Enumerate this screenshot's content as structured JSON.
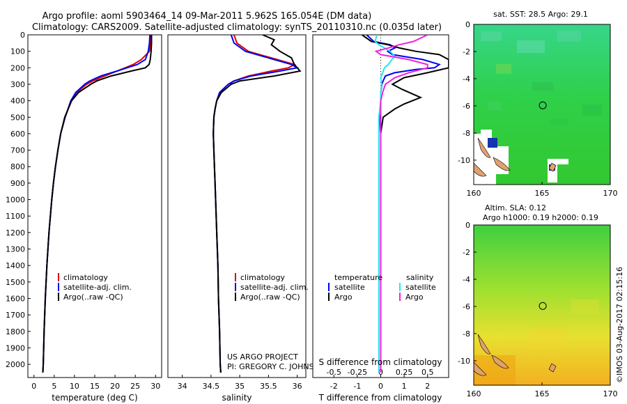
{
  "header": {
    "line1": "Argo profile: aoml 5903464_14 09-Mar-2011 5.962S 165.054E (DM data)",
    "line2": "Climatology: CARS2009. Satellite-adjusted climatology: synTS_20110310.nc (0.035d later)"
  },
  "colors": {
    "clim": "#dd0000",
    "sat": "#0000ee",
    "argo": "#000000",
    "sal_sat": "#22e5ee",
    "sal_argo": "#ee22dd",
    "land": "#e0a070"
  },
  "chart_data": [
    {
      "type": "line",
      "id": "temperature",
      "xlabel": "temperature (deg C)",
      "ylim": [
        2080,
        0
      ],
      "xlim": [
        -1.5,
        31.5
      ],
      "xticks": [
        0,
        5,
        10,
        15,
        20,
        25,
        30
      ],
      "yticks": [
        0,
        100,
        200,
        300,
        400,
        500,
        600,
        700,
        800,
        900,
        1000,
        1100,
        1200,
        1300,
        1400,
        1500,
        1600,
        1700,
        1800,
        1900,
        2000
      ],
      "legend": [
        "climatology",
        "satellite-adj. clim.",
        "Argo(..raw -QC)"
      ],
      "series": [
        {
          "name": "climatology",
          "depth": [
            0,
            50,
            100,
            150,
            180,
            200,
            220,
            250,
            280,
            300,
            350,
            400,
            500,
            600,
            700,
            800,
            900,
            1000,
            1200,
            1400,
            1600,
            1800,
            2000,
            2050
          ],
          "values": [
            28.9,
            28.8,
            28.5,
            26.5,
            24.5,
            22.5,
            20.5,
            17.5,
            14.5,
            13.0,
            10.5,
            9.2,
            7.7,
            6.6,
            5.9,
            5.3,
            4.8,
            4.4,
            3.7,
            3.2,
            2.8,
            2.5,
            2.3,
            2.2
          ]
        },
        {
          "name": "satellite-adj. clim.",
          "depth": [
            0,
            50,
            100,
            150,
            180,
            200,
            220,
            250,
            280,
            300,
            350,
            400,
            500,
            600,
            700,
            800,
            900,
            1000,
            1200,
            1400,
            1600,
            1800,
            2000,
            2050
          ],
          "values": [
            28.6,
            28.5,
            28.2,
            27.5,
            25.5,
            23.0,
            20.5,
            16.5,
            13.8,
            12.5,
            10.3,
            9.1,
            7.7,
            6.6,
            5.9,
            5.3,
            4.8,
            4.4,
            3.7,
            3.2,
            2.8,
            2.5,
            2.3,
            2.2
          ]
        },
        {
          "name": "Argo(..raw -QC)",
          "depth": [
            0,
            50,
            100,
            150,
            180,
            200,
            220,
            250,
            280,
            300,
            350,
            400,
            500,
            600,
            700,
            800,
            900,
            1000,
            1200,
            1400,
            1600,
            1800,
            2000,
            2050
          ],
          "values": [
            29.0,
            29.0,
            28.9,
            28.7,
            28.4,
            27.5,
            24.0,
            19.0,
            15.5,
            14.0,
            11.0,
            9.3,
            7.6,
            6.6,
            5.9,
            5.3,
            4.8,
            4.4,
            3.7,
            3.2,
            2.8,
            2.5,
            2.3,
            2.2
          ]
        }
      ]
    },
    {
      "type": "line",
      "id": "salinity",
      "xlabel": "salinity",
      "ylim": [
        2080,
        0
      ],
      "xlim": [
        33.75,
        36.15
      ],
      "xticks": [
        34,
        34.5,
        35,
        35.5,
        36
      ],
      "legend": [
        "climatology",
        "satellite-adj. clim.",
        "Argo(..raw -QC)"
      ],
      "series": [
        {
          "name": "climatology",
          "depth": [
            0,
            50,
            100,
            150,
            180,
            200,
            220,
            250,
            280,
            300,
            350,
            400,
            450,
            500,
            600,
            700,
            800,
            900,
            1000,
            1200,
            1400,
            1600,
            1800,
            2000,
            2050
          ],
          "values": [
            34.9,
            34.95,
            35.15,
            35.65,
            35.95,
            35.85,
            35.55,
            35.15,
            34.9,
            34.8,
            34.65,
            34.6,
            34.57,
            34.55,
            34.54,
            34.55,
            34.56,
            34.57,
            34.58,
            34.6,
            34.62,
            34.63,
            34.65,
            34.66,
            34.67
          ]
        },
        {
          "name": "satellite-adj. clim.",
          "depth": [
            0,
            50,
            100,
            150,
            180,
            200,
            220,
            250,
            280,
            300,
            350,
            400,
            450,
            500,
            600,
            700,
            800,
            900,
            1000,
            1200,
            1400,
            1600,
            1800,
            2000,
            2050
          ],
          "values": [
            34.85,
            34.9,
            35.1,
            35.6,
            35.9,
            36.0,
            35.7,
            35.2,
            34.9,
            34.8,
            34.65,
            34.6,
            34.57,
            34.55,
            34.54,
            34.55,
            34.56,
            34.57,
            34.58,
            34.6,
            34.62,
            34.63,
            34.65,
            34.66,
            34.67
          ]
        },
        {
          "name": "Argo(..raw -QC)",
          "depth": [
            0,
            30,
            60,
            100,
            140,
            180,
            220,
            250,
            280,
            300,
            350,
            400,
            450,
            500,
            600,
            700,
            800,
            900,
            1000,
            1200,
            1400,
            1600,
            1800,
            2000,
            2050
          ],
          "values": [
            35.4,
            35.6,
            35.55,
            35.7,
            35.9,
            35.95,
            36.05,
            35.6,
            35.0,
            34.85,
            34.68,
            34.6,
            34.57,
            34.55,
            34.54,
            34.55,
            34.56,
            34.57,
            34.58,
            34.6,
            34.62,
            34.63,
            34.65,
            34.66,
            34.67
          ]
        }
      ]
    },
    {
      "type": "line",
      "id": "differences",
      "xlabel": "T difference from climatology",
      "xlabel_top": "S difference from climatology",
      "ylim": [
        2080,
        0
      ],
      "xlim": [
        -2.9,
        2.9
      ],
      "xticks": [
        -2,
        -1,
        0,
        1,
        2
      ],
      "xticks_top": [
        "-0.5",
        "-0.25",
        "0",
        "0.25",
        "0.5"
      ],
      "legend_titles": [
        "temperature",
        "salinity"
      ],
      "legend": [
        "satellite",
        "Argo",
        "satellite",
        "Argo"
      ],
      "series": [
        {
          "name": "T satellite",
          "depth": [
            0,
            40,
            60,
            80,
            100,
            120,
            150,
            180,
            200,
            210,
            230,
            250,
            280,
            300,
            350,
            400,
            500,
            600,
            800,
            1000,
            1200,
            1400,
            1600,
            1800,
            2000,
            2050
          ],
          "values": [
            -0.6,
            -0.3,
            0.4,
            0.6,
            0.3,
            0.5,
            1.8,
            2.5,
            2.3,
            1.5,
            0.6,
            0.2,
            0.1,
            0.05,
            0.0,
            0.0,
            -0.05,
            0.0,
            0.0,
            0.0,
            0.0,
            0.0,
            0.0,
            0.0,
            0.0,
            0.0
          ]
        },
        {
          "name": "T Argo",
          "depth": [
            0,
            40,
            60,
            80,
            100,
            120,
            150,
            180,
            200,
            230,
            260,
            300,
            330,
            380,
            420,
            450,
            500,
            600,
            800,
            1000,
            1200,
            1400,
            1600,
            1800,
            2000,
            2050
          ],
          "values": [
            -0.8,
            -0.4,
            0.3,
            0.8,
            1.5,
            2.5,
            2.9,
            2.9,
            2.9,
            2.0,
            1.0,
            0.5,
            0.9,
            1.7,
            1.0,
            0.6,
            0.1,
            0.0,
            0.0,
            0.0,
            0.0,
            0.0,
            0.0,
            0.0,
            0.0,
            0.0
          ]
        },
        {
          "name": "S satellite",
          "depth": [
            0,
            40,
            60,
            80,
            100,
            130,
            150,
            180,
            200,
            230,
            260,
            300,
            350,
            400,
            500,
            600,
            800,
            1000,
            1500,
            2050
          ],
          "values": [
            -0.04,
            -0.06,
            -0.02,
            0.04,
            0.1,
            0.15,
            0.12,
            0.08,
            0.04,
            0.02,
            0.0,
            0.01,
            0.0,
            0.0,
            -0.02,
            -0.02,
            -0.02,
            -0.02,
            -0.02,
            -0.02
          ]
        },
        {
          "name": "S Argo",
          "depth": [
            0,
            40,
            60,
            80,
            100,
            120,
            150,
            180,
            200,
            230,
            260,
            300,
            350,
            400,
            500,
            600,
            1000,
            2050
          ],
          "values": [
            0.5,
            0.35,
            0.2,
            0.08,
            -0.05,
            0.0,
            0.3,
            0.5,
            0.5,
            0.3,
            0.15,
            0.05,
            0.02,
            0.0,
            0.0,
            0.0,
            0.0,
            0.0
          ]
        }
      ],
      "annotation": [
        "US ARGO PROJECT",
        "PI: GREGORY C. JOHNSON"
      ]
    },
    {
      "type": "heatmap",
      "id": "sst_map",
      "title": "sat. SST: 28.5  Argo: 29.1",
      "xticks": [
        160,
        165,
        170
      ],
      "yticks": [
        0,
        -2,
        -4,
        -6,
        -8,
        -10
      ],
      "xlim": [
        160,
        170
      ],
      "ylim": [
        -11.8,
        0
      ],
      "marker": [
        165.054,
        -5.962
      ]
    },
    {
      "type": "heatmap",
      "id": "sla_map",
      "title": [
        "Altim. SLA: 0.12",
        "Argo h1000: 0.19  h2000: 0.19"
      ],
      "xticks": [
        160,
        165,
        170
      ],
      "yticks": [
        0,
        -2,
        -4,
        -6,
        -8,
        -10
      ],
      "xlim": [
        160,
        170
      ],
      "ylim": [
        -11.8,
        0
      ],
      "marker": [
        165.054,
        -5.962
      ]
    }
  ],
  "side_label": "©IMOS 03-Aug-2017 02:15:16"
}
